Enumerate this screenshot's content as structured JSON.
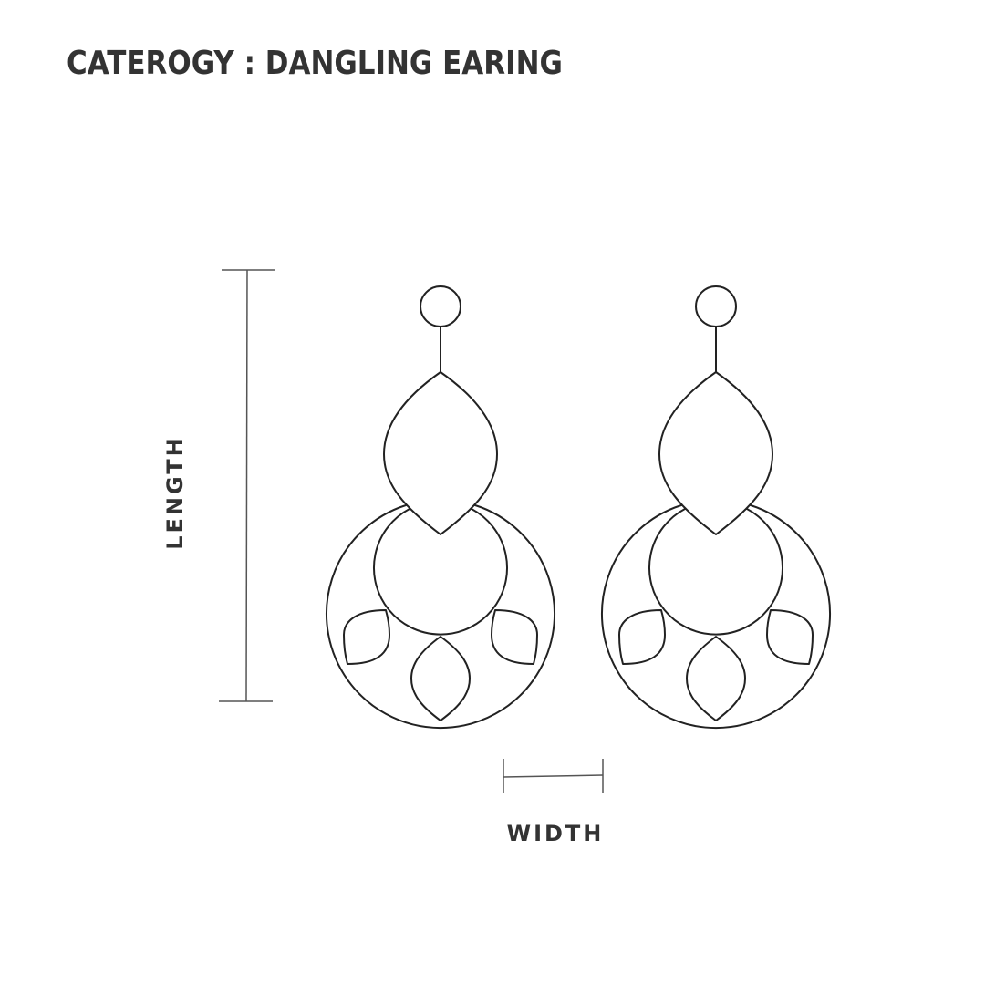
{
  "title": "CATEROGY : DANGLING EARING",
  "dimensions": {
    "length_label": "LENGTH",
    "width_label": "WIDTH"
  },
  "colors": {
    "line": "#222222",
    "text": "#333333",
    "background": "#ffffff"
  }
}
